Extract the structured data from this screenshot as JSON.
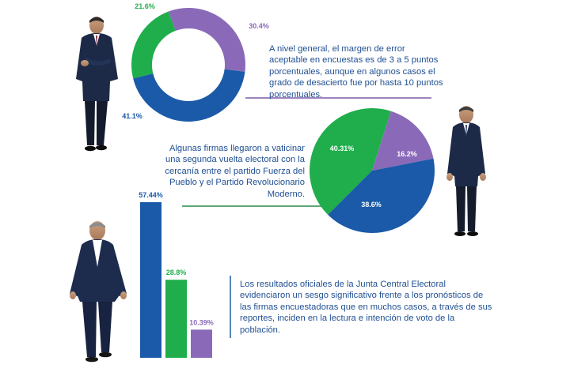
{
  "colors": {
    "green": "#1fae4b",
    "blue": "#1a5aa8",
    "purple": "#8a6ab8",
    "text": "#1f4f93",
    "rule_purple": "#7e5ca6",
    "rule_green": "#2a8a4a"
  },
  "captions": {
    "top": "A nivel general, el margen de error aceptable en encuestas es de 3 a 5 puntos porcentuales, aunque en algunos casos el grado de desacierto fue por hasta 10 puntos porcentuales.",
    "middle": "Algunas firmas llegaron a vaticinar una segunda vuelta electoral con la cercanía entre el partido Fuerza del Pueblo y el Partido Revolucionario Moderno.",
    "bottom": "Los resultados oficiales de la Junta Central Electoral evidenciaron un sesgo significativo frente a los pronósticos de las firmas encuestadoras que en muchos casos, a través de sus reportes, inciden en la lectura e intención de voto de la población."
  },
  "chart_data": [
    {
      "type": "pie",
      "donut": true,
      "labels": [
        "21.6%",
        "30.4%",
        "41.1%"
      ],
      "values": [
        21.6,
        30.4,
        41.1
      ],
      "colors": [
        "#1fae4b",
        "#8a6ab8",
        "#1a5aa8"
      ]
    },
    {
      "type": "pie",
      "donut": false,
      "labels": [
        "40.31%",
        "16.2%",
        "38.6%"
      ],
      "values": [
        40.31,
        16.2,
        38.6
      ],
      "colors": [
        "#1fae4b",
        "#8a6ab8",
        "#1a5aa8"
      ]
    },
    {
      "type": "bar",
      "labels": [
        "57.44%",
        "28.8%",
        "10.39%"
      ],
      "values": [
        57.44,
        28.8,
        10.39
      ],
      "colors": [
        "#1a5aa8",
        "#1fae4b",
        "#8a6ab8"
      ]
    }
  ]
}
